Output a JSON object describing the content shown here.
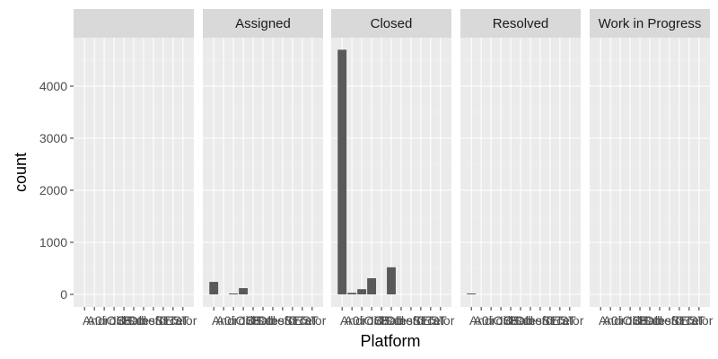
{
  "chart_data": {
    "type": "bar",
    "facet_by": "Status",
    "xlabel": "Platform",
    "ylabel": "count",
    "ylim": [
      -230,
      4980
    ],
    "y_ticks": [
      0,
      1000,
      2000,
      3000,
      4000
    ],
    "categories": [
      "",
      "A0",
      "Android",
      "iOS",
      "IOS",
      "iPad",
      "Other",
      "Salesforce",
      "SE",
      "TEST",
      "Tator"
    ],
    "x_tick_labels": [
      "",
      "A0",
      "Android",
      "iOS",
      "IOS",
      "iPad",
      "Other",
      "Salesforce",
      "SE",
      "TEST",
      "Tator"
    ],
    "grid": true,
    "legend": "none",
    "colors": {
      "panel_bg": "#ebebeb",
      "strip_bg": "#d9d9d9",
      "bar_fill": "#595959",
      "grid_major": "#ffffff",
      "grid_minor": "#f4f4f4"
    },
    "facets": [
      {
        "name": "",
        "values": [
          0,
          0,
          0,
          0,
          0,
          0,
          0,
          0,
          0,
          0,
          0
        ]
      },
      {
        "name": "Assigned",
        "values": [
          240,
          0,
          10,
          120,
          0,
          0,
          0,
          0,
          0,
          0,
          0
        ]
      },
      {
        "name": "Closed",
        "values": [
          4700,
          30,
          100,
          310,
          0,
          520,
          0,
          0,
          0,
          0,
          0
        ]
      },
      {
        "name": "Resolved",
        "values": [
          10,
          0,
          0,
          0,
          0,
          0,
          0,
          0,
          0,
          0,
          0
        ]
      },
      {
        "name": "Work in Progress",
        "values": [
          0,
          0,
          0,
          0,
          0,
          0,
          0,
          0,
          0,
          0,
          0
        ]
      }
    ]
  }
}
